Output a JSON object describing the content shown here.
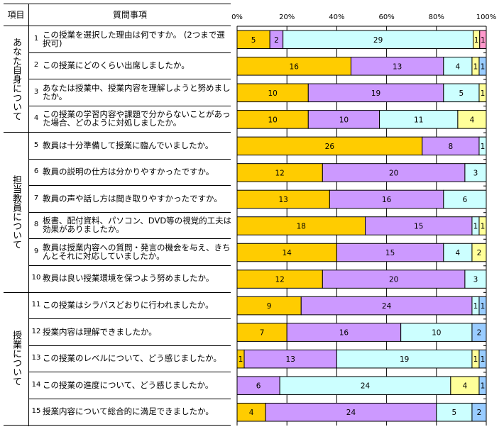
{
  "table": {
    "header_category": "項目",
    "header_question": "質問事項",
    "categories": [
      {
        "label": "あなた自身について",
        "rows": 4
      },
      {
        "label": "担当教員について",
        "rows": 6
      },
      {
        "label": "授業について",
        "rows": 5
      }
    ],
    "questions": [
      {
        "num": "1",
        "text": "この授業を選択した理由は何ですか。\n(2つまで選択可)"
      },
      {
        "num": "2",
        "text": " この授業にどのくらい出席しましたか。"
      },
      {
        "num": "3",
        "text": "あなたは授業中、授業内容を理解しようと努めましたか。"
      },
      {
        "num": "4",
        "text": "この授業の学習内容や課題で分からないことがあった場合、どのように対処しましたか。"
      },
      {
        "num": "5",
        "text": "教員は十分準備して授業に臨んでいましたか。"
      },
      {
        "num": "6",
        "text": "教員の説明の仕方は分かりやすかったですか。"
      },
      {
        "num": "7",
        "text": "教員の声や話し方は聞き取りやすかったですか。"
      },
      {
        "num": "8",
        "text": "板書、配付資料、パソコン、DVD等の視覚的工夫は効果がありましたか。"
      },
      {
        "num": "9",
        "text": "教員は授業内容への質問・発言の機会を与え、きちんとそれに対応していましたか。"
      },
      {
        "num": "10",
        "text": "教員は良い授業環境を保つよう努めましたか。"
      },
      {
        "num": "11",
        "text": "この授業はシラバスどおりに行われましたか。"
      },
      {
        "num": "12",
        "text": "授業内容は理解できましたか。"
      },
      {
        "num": "13",
        "text": "この授業のレベルについて、どう感じましたか。"
      },
      {
        "num": "14",
        "text": "この授業の進度について、どう感じましたか。"
      },
      {
        "num": "15",
        "text": "授業内容について総合的に満足できましたか。"
      }
    ]
  },
  "chart_data": {
    "type": "bar",
    "orientation": "horizontal",
    "stacked": "percent",
    "categories": [
      "1",
      "2",
      "3",
      "4",
      "5",
      "6",
      "7",
      "8",
      "9",
      "10",
      "11",
      "12",
      "13",
      "14",
      "15"
    ],
    "xlim": [
      0,
      100
    ],
    "xticks": [
      "0%",
      "20%",
      "40%",
      "60%",
      "80%",
      "100%"
    ],
    "grid": true,
    "series": [
      {
        "name": "s1",
        "color": "#FFCC00",
        "values": [
          5,
          16,
          10,
          10,
          26,
          12,
          13,
          18,
          14,
          12,
          9,
          7,
          1,
          0,
          4
        ]
      },
      {
        "name": "s2",
        "color": "#CC99FF",
        "values": [
          2,
          13,
          19,
          10,
          8,
          20,
          16,
          15,
          15,
          20,
          24,
          16,
          13,
          6,
          24
        ]
      },
      {
        "name": "s3",
        "color": "#CCFFFF",
        "values": [
          29,
          4,
          5,
          11,
          1,
          3,
          6,
          1,
          4,
          3,
          1,
          10,
          19,
          24,
          5
        ]
      },
      {
        "name": "s4",
        "color": "#FFFF99",
        "values": [
          1,
          1,
          1,
          4,
          0,
          0,
          0,
          1,
          2,
          0,
          0,
          0,
          1,
          4,
          0
        ]
      },
      {
        "name": "s5",
        "color": "#99CCFF",
        "values": [
          0,
          1,
          0,
          0,
          0,
          0,
          0,
          0,
          0,
          0,
          1,
          2,
          1,
          1,
          2
        ]
      },
      {
        "name": "s6",
        "color": "#FF99CC",
        "values": [
          1,
          0,
          0,
          0,
          0,
          0,
          0,
          0,
          0,
          0,
          0,
          0,
          0,
          0,
          0
        ]
      }
    ]
  }
}
